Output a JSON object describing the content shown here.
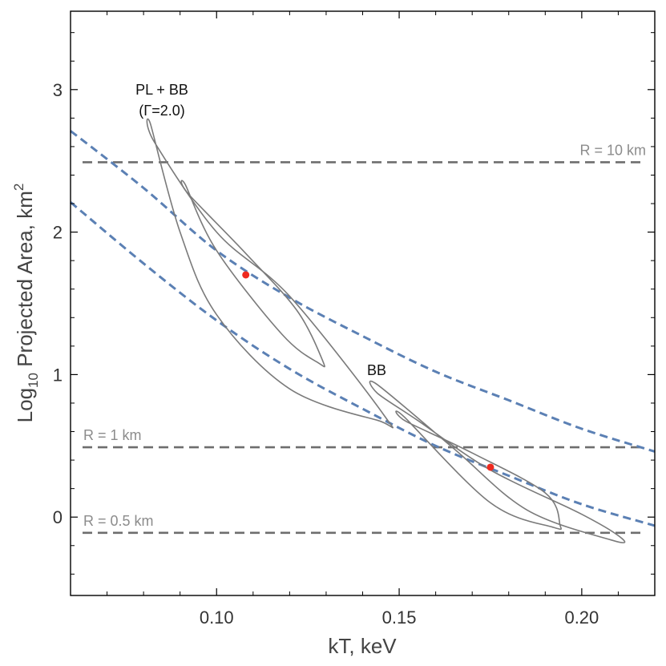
{
  "chart_data": {
    "type": "line",
    "xlabel": "kT, keV",
    "ylabel": {
      "prefix": "Log",
      "subscript": "10",
      "text": " Projected Area, km",
      "superscript": "2"
    },
    "xlim": [
      0.06,
      0.22
    ],
    "ylim": [
      -0.55,
      3.55
    ],
    "x_ticks": [
      0.1,
      0.15,
      0.2
    ],
    "x_tick_labels": [
      "0.10",
      "0.15",
      "0.20"
    ],
    "y_ticks": [
      0,
      1,
      2,
      3
    ],
    "y_tick_labels": [
      "0",
      "1",
      "2",
      "3"
    ],
    "reference_lines": [
      {
        "label": "R = 10 km",
        "y": 2.49
      },
      {
        "label": "R = 1 km",
        "y": 0.49
      },
      {
        "label": "R = 0.5 km",
        "y": -0.11
      }
    ],
    "dashed_curves": [
      {
        "name": "upper curve",
        "x": [
          0.06,
          0.08,
          0.1,
          0.12,
          0.14,
          0.16,
          0.18,
          0.2,
          0.22
        ],
        "y": [
          2.71,
          2.31,
          1.87,
          1.54,
          1.27,
          1.02,
          0.82,
          0.62,
          0.46
        ]
      },
      {
        "name": "lower curve",
        "x": [
          0.06,
          0.08,
          0.1,
          0.12,
          0.14,
          0.16,
          0.18,
          0.2,
          0.22
        ],
        "y": [
          2.21,
          1.78,
          1.38,
          1.04,
          0.76,
          0.5,
          0.29,
          0.09,
          -0.06
        ]
      }
    ],
    "models": [
      {
        "label_lines": [
          "PL + BB",
          "(Γ=2.0)"
        ],
        "best_fit": {
          "x": 0.108,
          "y": 1.7
        },
        "outer_contour": {
          "x": [
            0.082,
            0.083,
            0.1,
            0.12,
            0.146,
            0.144,
            0.12,
            0.1,
            0.09,
            0.082
          ],
          "y": [
            2.75,
            2.63,
            2.0,
            1.55,
            0.71,
            0.68,
            0.9,
            1.42,
            2.0,
            2.75
          ]
        },
        "inner_contour": {
          "x": [
            0.0915,
            0.0922,
            0.108,
            0.122,
            0.129,
            0.128,
            0.118,
            0.1,
            0.0915
          ],
          "y": [
            2.33,
            2.27,
            1.85,
            1.45,
            1.1,
            1.08,
            1.28,
            1.87,
            2.33
          ]
        }
      },
      {
        "label_lines": [
          "BB"
        ],
        "best_fit": {
          "x": 0.175,
          "y": 0.35
        },
        "outer_contour": {
          "x": [
            0.144,
            0.144,
            0.155,
            0.175,
            0.2,
            0.211,
            0.208,
            0.185,
            0.165,
            0.144
          ],
          "y": [
            0.93,
            0.87,
            0.68,
            0.33,
            0.02,
            -0.15,
            -0.16,
            0.05,
            0.48,
            0.93
          ]
        },
        "inner_contour": {
          "x": [
            0.1515,
            0.152,
            0.17,
            0.19,
            0.194,
            0.192,
            0.175,
            0.1515
          ],
          "y": [
            0.7,
            0.67,
            0.45,
            0.17,
            -0.05,
            -0.07,
            0.1,
            0.7
          ]
        }
      }
    ]
  }
}
